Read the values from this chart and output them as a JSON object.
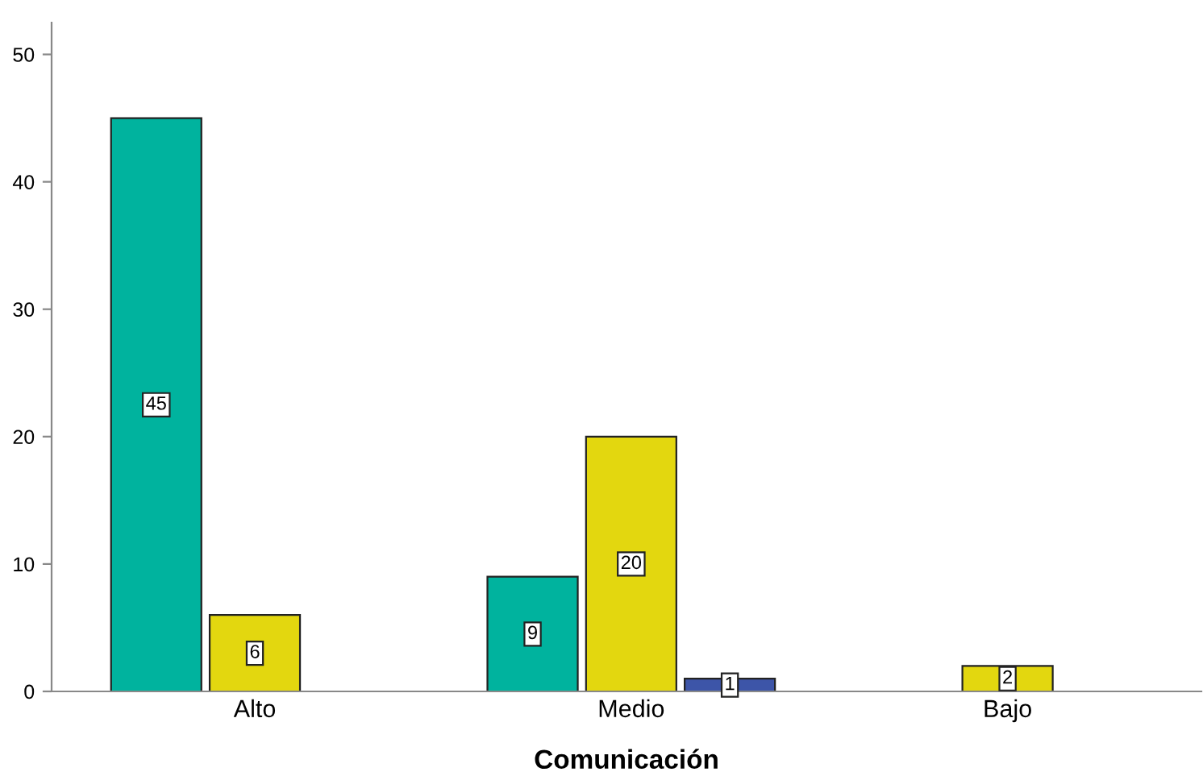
{
  "chart_data": {
    "type": "bar",
    "xlabel": "Comunicación",
    "categories": [
      "Alto",
      "Medio",
      "Bajo"
    ],
    "series": [
      {
        "color": "#00b39e",
        "values": [
          45,
          9,
          null
        ]
      },
      {
        "color": "#e3d70f",
        "values": [
          6,
          20,
          2
        ]
      },
      {
        "color": "#3d55a8",
        "values": [
          null,
          1,
          null
        ]
      }
    ],
    "ylim": [
      0,
      52.5
    ],
    "yticks": [
      0,
      10,
      20,
      30,
      40,
      50
    ],
    "grid": false,
    "legend": false,
    "data_labels": true
  }
}
